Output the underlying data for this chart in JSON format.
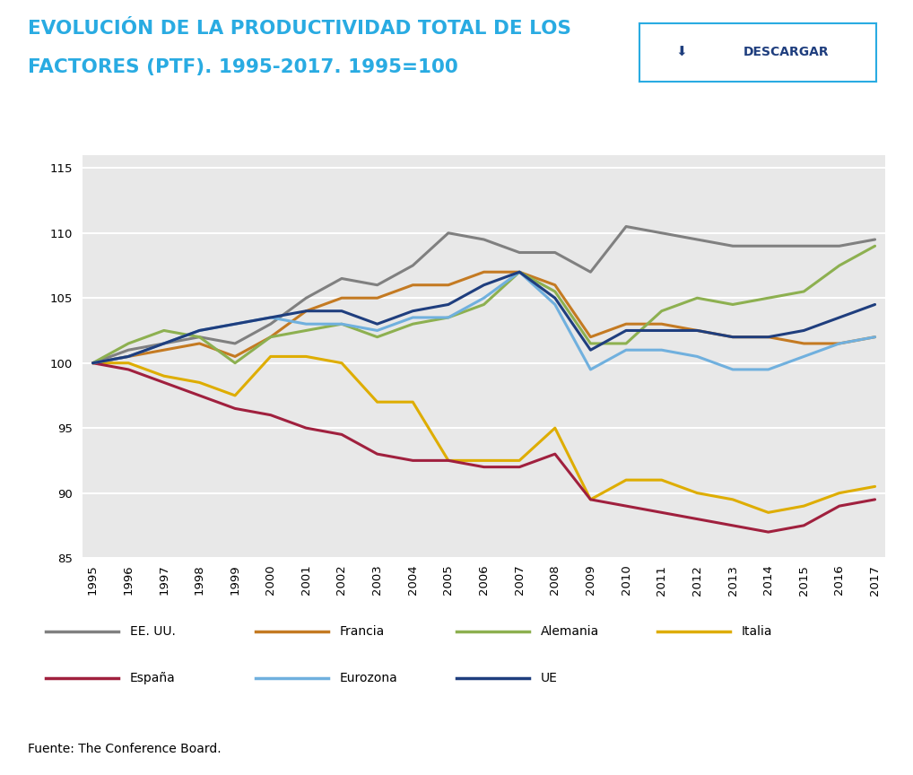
{
  "title_line1": "EVOLUCIÓN DE LA PRODUCTIVIDAD TOTAL DE LOS",
  "title_line2": "FACTORES (PTF). 1995-2017. 1995=100",
  "title_color": "#29ABE2",
  "background_color": "#e8e8e8",
  "figure_bg": "#ffffff",
  "source_text": "Fuente: The Conference Board.",
  "years": [
    1995,
    1996,
    1997,
    1998,
    1999,
    2000,
    2001,
    2002,
    2003,
    2004,
    2005,
    2006,
    2007,
    2008,
    2009,
    2010,
    2011,
    2012,
    2013,
    2014,
    2015,
    2016,
    2017
  ],
  "series": {
    "EE. UU.": {
      "color": "#808080",
      "values": [
        100,
        101,
        101.5,
        102,
        101.5,
        103,
        105,
        106.5,
        106,
        107.5,
        110,
        109.5,
        108.5,
        108.5,
        107,
        110.5,
        110,
        109.5,
        109,
        109,
        109,
        109,
        109.5
      ]
    },
    "Francia": {
      "color": "#C47A22",
      "values": [
        100,
        100.5,
        101,
        101.5,
        100.5,
        102,
        104,
        105,
        105,
        106,
        106,
        107,
        107,
        106,
        102,
        103,
        103,
        102.5,
        102,
        102,
        101.5,
        101.5,
        102
      ]
    },
    "Alemania": {
      "color": "#8DB050",
      "values": [
        100,
        101.5,
        102.5,
        102,
        100,
        102,
        102.5,
        103,
        102,
        103,
        103.5,
        104.5,
        107,
        105.5,
        101.5,
        101.5,
        104,
        105,
        104.5,
        105,
        105.5,
        107.5,
        109
      ]
    },
    "Italia": {
      "color": "#DEAD00",
      "values": [
        100,
        100,
        99,
        98.5,
        97.5,
        100.5,
        100.5,
        100,
        97,
        97,
        92.5,
        92.5,
        92.5,
        95,
        89.5,
        91,
        91,
        90,
        89.5,
        88.5,
        89,
        90,
        90.5
      ]
    },
    "España": {
      "color": "#A0203E",
      "values": [
        100,
        99.5,
        98.5,
        97.5,
        96.5,
        96,
        95,
        94.5,
        93,
        92.5,
        92.5,
        92,
        92,
        93,
        89.5,
        89,
        88.5,
        88,
        87.5,
        87,
        87.5,
        89,
        89.5
      ]
    },
    "Eurozona": {
      "color": "#70B0DE",
      "values": [
        100,
        100.5,
        101.5,
        102.5,
        103,
        103.5,
        103,
        103,
        102.5,
        103.5,
        103.5,
        105,
        107,
        104.5,
        99.5,
        101,
        101,
        100.5,
        99.5,
        99.5,
        100.5,
        101.5,
        102
      ]
    },
    "UE": {
      "color": "#1F3E7E",
      "values": [
        100,
        100.5,
        101.5,
        102.5,
        103,
        103.5,
        104,
        104,
        103,
        104,
        104.5,
        106,
        107,
        105,
        101,
        102.5,
        102.5,
        102.5,
        102,
        102,
        102.5,
        103.5,
        104.5
      ]
    }
  },
  "ylim": [
    85,
    116
  ],
  "yticks": [
    85,
    90,
    95,
    100,
    105,
    110,
    115
  ],
  "row1": [
    "EE. UU.",
    "Francia",
    "Alemania",
    "Italia"
  ],
  "row2": [
    "España",
    "Eurozona",
    "UE"
  ],
  "button_text": "⬇ DESCARGAR",
  "button_color": "#1F3E7E",
  "button_border_color": "#29ABE2"
}
